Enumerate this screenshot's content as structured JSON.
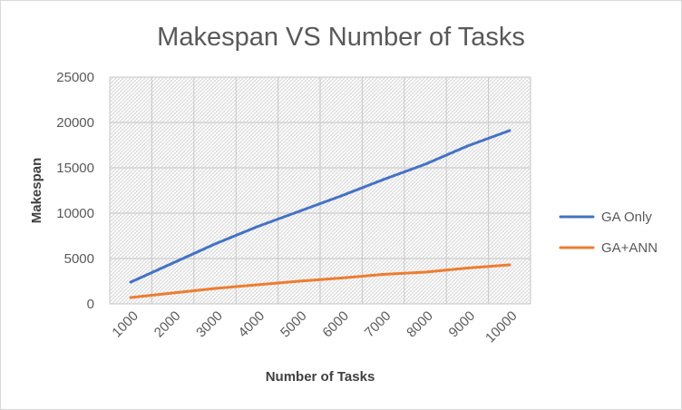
{
  "chart_data": {
    "type": "line",
    "title": "Makespan VS Number of Tasks",
    "xlabel": "Number of Tasks",
    "ylabel": "Makespan",
    "categories": [
      "1000",
      "2000",
      "3000",
      "4000",
      "5000",
      "6000",
      "7000",
      "8000",
      "9000",
      "10000"
    ],
    "y_ticks": [
      "0",
      "5000",
      "10000",
      "15000",
      "20000",
      "25000"
    ],
    "ylim": [
      0,
      25000
    ],
    "grid": true,
    "legend_position": "right",
    "series": [
      {
        "name": "GA Only",
        "color": "#4472c4",
        "values": [
          2400,
          4500,
          6600,
          8500,
          10200,
          11900,
          13700,
          15400,
          17400,
          19100
        ]
      },
      {
        "name": "GA+ANN",
        "color": "#ed7d31",
        "values": [
          700,
          1200,
          1700,
          2100,
          2500,
          2850,
          3250,
          3500,
          3950,
          4300
        ]
      }
    ]
  }
}
